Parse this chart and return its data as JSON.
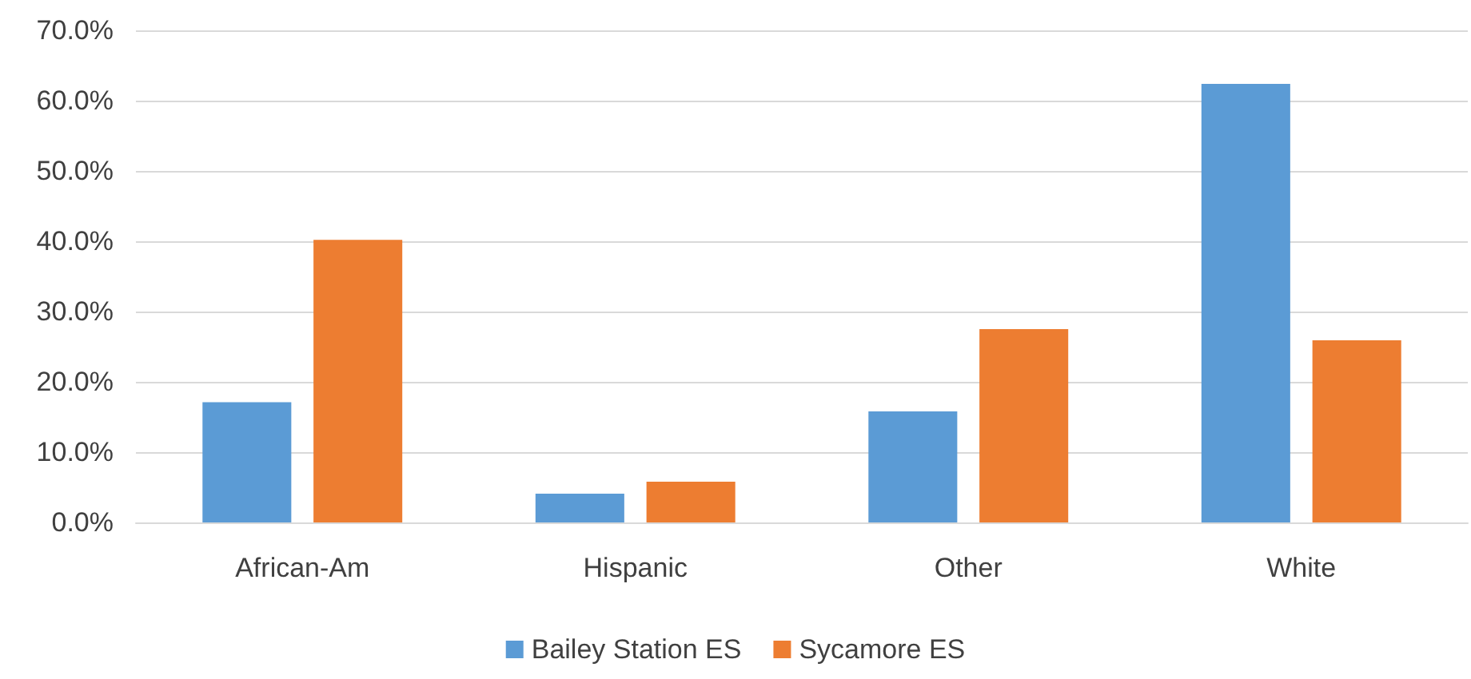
{
  "chart_data": {
    "type": "bar",
    "categories": [
      "African-Am",
      "Hispanic",
      "Other",
      "White"
    ],
    "series": [
      {
        "name": "Bailey Station ES",
        "color": "#5b9bd5",
        "values": [
          17.1,
          4.1,
          15.8,
          62.4
        ]
      },
      {
        "name": "Sycamore ES",
        "color": "#ed7d31",
        "values": [
          40.2,
          5.8,
          27.5,
          25.9
        ]
      }
    ],
    "ylim": [
      0,
      70
    ],
    "yticks": [
      {
        "value": 0,
        "label": "0.0%"
      },
      {
        "value": 10,
        "label": "10.0%"
      },
      {
        "value": 20,
        "label": "20.0%"
      },
      {
        "value": 30,
        "label": "30.0%"
      },
      {
        "value": 40,
        "label": "40.0%"
      },
      {
        "value": 50,
        "label": "50.0%"
      },
      {
        "value": 60,
        "label": "60.0%"
      },
      {
        "value": 70,
        "label": "70.0%"
      }
    ],
    "grid": "y",
    "legend": "bottom"
  }
}
